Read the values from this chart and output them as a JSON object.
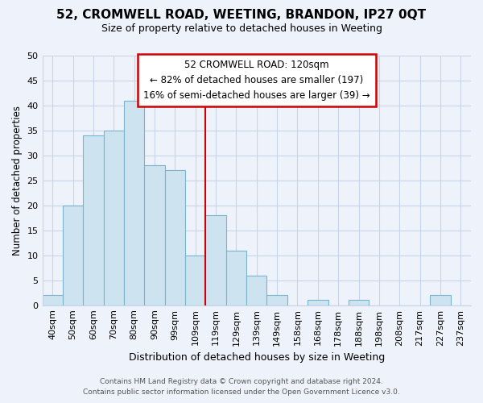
{
  "title": "52, CROMWELL ROAD, WEETING, BRANDON, IP27 0QT",
  "subtitle": "Size of property relative to detached houses in Weeting",
  "xlabel": "Distribution of detached houses by size in Weeting",
  "ylabel": "Number of detached properties",
  "bar_labels": [
    "40sqm",
    "50sqm",
    "60sqm",
    "70sqm",
    "80sqm",
    "90sqm",
    "99sqm",
    "109sqm",
    "119sqm",
    "129sqm",
    "139sqm",
    "149sqm",
    "158sqm",
    "168sqm",
    "178sqm",
    "188sqm",
    "198sqm",
    "208sqm",
    "217sqm",
    "227sqm",
    "237sqm"
  ],
  "bar_values": [
    2,
    20,
    34,
    35,
    41,
    28,
    27,
    10,
    18,
    11,
    6,
    2,
    0,
    1,
    0,
    1,
    0,
    0,
    0,
    2,
    0
  ],
  "bar_color": "#cde4f0",
  "bar_edge_color": "#7ab3cc",
  "vline_color": "#cc0000",
  "ylim": [
    0,
    50
  ],
  "yticks": [
    0,
    5,
    10,
    15,
    20,
    25,
    30,
    35,
    40,
    45,
    50
  ],
  "annotation_line1": "52 CROMWELL ROAD: 120sqm",
  "annotation_line2": "← 82% of detached houses are smaller (197)",
  "annotation_line3": "16% of semi-detached houses are larger (39) →",
  "footer_line1": "Contains HM Land Registry data © Crown copyright and database right 2024.",
  "footer_line2": "Contains public sector information licensed under the Open Government Licence v3.0.",
  "bg_color": "#eef2fa",
  "grid_color": "#c8d4e8",
  "ann_box_color": "#cc0000",
  "ann_bg_color": "#ffffff"
}
